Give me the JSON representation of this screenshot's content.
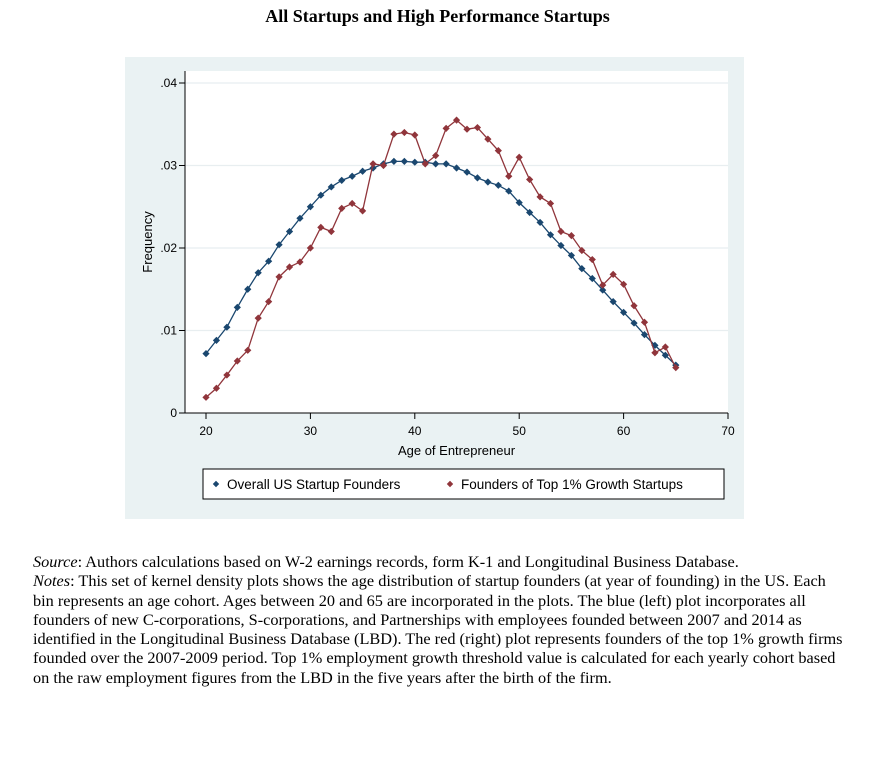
{
  "title": "All Startups and High Performance Startups",
  "chart_data": {
    "type": "line",
    "title": "All Startups and High Performance Startups",
    "xlabel": "Age of Entrepreneur",
    "ylabel": "Frequency",
    "xlim": [
      20,
      70
    ],
    "ylim": [
      0,
      0.04
    ],
    "x_ticks": [
      20,
      30,
      40,
      50,
      60,
      70
    ],
    "x_tick_labels": [
      "20",
      "30",
      "40",
      "50",
      "60",
      "70"
    ],
    "y_ticks": [
      0,
      0.01,
      0.02,
      0.03,
      0.04
    ],
    "y_tick_labels": [
      "0",
      ".01",
      ".02",
      ".03",
      ".04"
    ],
    "grid": true,
    "legend_position": "bottom",
    "x": [
      20,
      21,
      22,
      23,
      24,
      25,
      26,
      27,
      28,
      29,
      30,
      31,
      32,
      33,
      34,
      35,
      36,
      37,
      38,
      39,
      40,
      41,
      42,
      43,
      44,
      45,
      46,
      47,
      48,
      49,
      50,
      51,
      52,
      53,
      54,
      55,
      56,
      57,
      58,
      59,
      60,
      61,
      62,
      63,
      64,
      65
    ],
    "series": [
      {
        "name": "Overall US Startup Founders",
        "color": "#1a476f",
        "marker": "diamond",
        "values": [
          0.0072,
          0.0088,
          0.0104,
          0.0128,
          0.015,
          0.017,
          0.0184,
          0.0204,
          0.022,
          0.0236,
          0.025,
          0.0264,
          0.0274,
          0.0282,
          0.0287,
          0.0293,
          0.0297,
          0.0302,
          0.0305,
          0.0305,
          0.0304,
          0.0304,
          0.0302,
          0.0302,
          0.0297,
          0.0292,
          0.0285,
          0.028,
          0.0276,
          0.0269,
          0.0255,
          0.0243,
          0.0231,
          0.0216,
          0.0203,
          0.0191,
          0.0175,
          0.0163,
          0.0149,
          0.0135,
          0.0122,
          0.0109,
          0.0095,
          0.0082,
          0.007,
          0.0058
        ]
      },
      {
        "name": "Founders of Top 1% Growth Startups",
        "color": "#90353b",
        "marker": "diamond",
        "values": [
          0.0019,
          0.003,
          0.0046,
          0.0063,
          0.0076,
          0.0115,
          0.0135,
          0.0165,
          0.0177,
          0.0183,
          0.02,
          0.0225,
          0.022,
          0.0248,
          0.0254,
          0.0245,
          0.0302,
          0.03,
          0.0338,
          0.034,
          0.0337,
          0.0302,
          0.0312,
          0.0345,
          0.0355,
          0.0344,
          0.0346,
          0.0332,
          0.0318,
          0.0287,
          0.031,
          0.0283,
          0.0262,
          0.0254,
          0.022,
          0.0215,
          0.0197,
          0.0186,
          0.0155,
          0.0168,
          0.0156,
          0.013,
          0.011,
          0.0073,
          0.008,
          0.0055
        ]
      }
    ]
  },
  "caption": {
    "source_label": "Source",
    "source_text": ": Authors calculations based on W-2 earnings records, form K-1 and Longitudinal Business Database.",
    "notes_label": "Notes",
    "notes_text": ": This set of kernel density plots shows the age distribution of startup founders (at year of founding) in the US. Each bin represents an age cohort. Ages between 20 and 65 are incorporated in the plots. The blue (left) plot incorporates all founders of new C-corporations, S-corporations, and Partnerships with employees founded between 2007 and 2014 as identified in the Longitudinal Business Database (LBD). The red (right) plot represents founders of the top 1% growth firms founded over the 2007-2009 period. Top 1% employment growth threshold value is calculated for each yearly cohort based on the raw employment figures from the LBD in the five years after the birth of the firm."
  }
}
